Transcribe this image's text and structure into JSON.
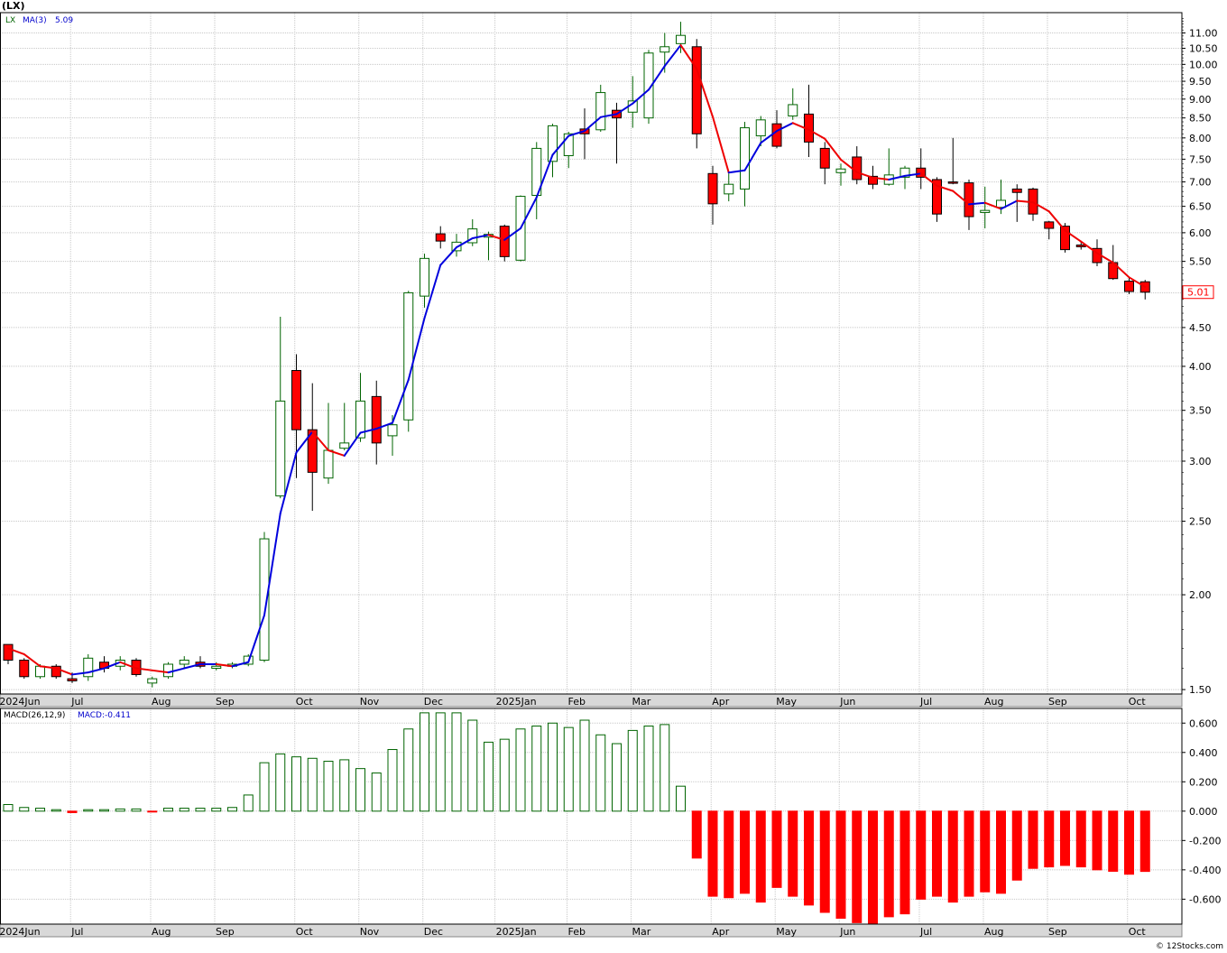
{
  "symbol_title": "(LX)",
  "watermark": "© 12Stocks.com",
  "colors": {
    "background": "#ffffff",
    "grid": "#c8c8c8",
    "axis_bar": "#d8d8d8",
    "up_candle_fill": "#ffffff",
    "up_candle_stroke": "#006400",
    "down_candle": "#ff0000",
    "ma_up": "#0000dd",
    "ma_down": "#ee0000",
    "macd_pos_stroke": "#006400",
    "macd_neg": "#ff0000",
    "last_price_label": "#ff0000"
  },
  "chart_data": [
    {
      "type": "candlestick",
      "legend": {
        "ticker": "LX",
        "ma_label": "MA(3)",
        "ma_value": "5.09"
      },
      "y_scale": "log",
      "ylim": [
        1.48,
        11.7
      ],
      "y_ticks": [
        "1.50",
        "2.00",
        "2.50",
        "3.00",
        "3.50",
        "4.00",
        "4.50",
        "5.00",
        "5.50",
        "6.00",
        "6.50",
        "7.00",
        "7.50",
        "8.00",
        "8.50",
        "9.00",
        "9.50",
        "10.00",
        "10.50",
        "11.00"
      ],
      "last_price_label": "5.01",
      "x_month_labels": [
        {
          "label": "2024Jun",
          "week": -0.6
        },
        {
          "label": "Jul",
          "week": 3.9
        },
        {
          "label": "Aug",
          "week": 8.9
        },
        {
          "label": "Sep",
          "week": 12.9
        },
        {
          "label": "Oct",
          "week": 17.9
        },
        {
          "label": "Nov",
          "week": 21.9
        },
        {
          "label": "Dec",
          "week": 25.9
        },
        {
          "label": "2025Jan",
          "week": 30.4
        },
        {
          "label": "Feb",
          "week": 34.9
        },
        {
          "label": "Mar",
          "week": 38.9
        },
        {
          "label": "Apr",
          "week": 43.9
        },
        {
          "label": "May",
          "week": 47.9
        },
        {
          "label": "Jun",
          "week": 51.9
        },
        {
          "label": "Jul",
          "week": 56.9
        },
        {
          "label": "Aug",
          "week": 60.9
        },
        {
          "label": "Sep",
          "week": 64.9
        },
        {
          "label": "Oct",
          "week": 69.9
        }
      ],
      "candles": [
        [
          1.72,
          1.72,
          1.62,
          1.64
        ],
        [
          1.64,
          1.65,
          1.55,
          1.56
        ],
        [
          1.56,
          1.62,
          1.55,
          1.61
        ],
        [
          1.61,
          1.62,
          1.55,
          1.56
        ],
        [
          1.55,
          1.58,
          1.53,
          1.54
        ],
        [
          1.56,
          1.67,
          1.54,
          1.65
        ],
        [
          1.63,
          1.66,
          1.58,
          1.6
        ],
        [
          1.61,
          1.66,
          1.59,
          1.64
        ],
        [
          1.64,
          1.65,
          1.56,
          1.57
        ],
        [
          1.53,
          1.56,
          1.51,
          1.55
        ],
        [
          1.56,
          1.63,
          1.55,
          1.62
        ],
        [
          1.62,
          1.66,
          1.6,
          1.64
        ],
        [
          1.63,
          1.66,
          1.6,
          1.61
        ],
        [
          1.6,
          1.63,
          1.59,
          1.61
        ],
        [
          1.61,
          1.63,
          1.6,
          1.62
        ],
        [
          1.62,
          1.67,
          1.61,
          1.66
        ],
        [
          1.64,
          2.42,
          1.63,
          2.37
        ],
        [
          2.7,
          4.65,
          2.68,
          3.6
        ],
        [
          3.95,
          4.15,
          2.85,
          3.3
        ],
        [
          3.3,
          3.8,
          2.58,
          2.9
        ],
        [
          2.85,
          3.58,
          2.8,
          3.1
        ],
        [
          3.12,
          3.58,
          3.1,
          3.17
        ],
        [
          3.22,
          3.92,
          3.18,
          3.6
        ],
        [
          3.65,
          3.83,
          2.97,
          3.17
        ],
        [
          3.24,
          3.45,
          3.05,
          3.35
        ],
        [
          3.4,
          5.03,
          3.28,
          5.0
        ],
        [
          4.95,
          5.63,
          4.78,
          5.55
        ],
        [
          5.98,
          6.12,
          5.72,
          5.85
        ],
        [
          5.68,
          5.98,
          5.58,
          5.83
        ],
        [
          5.82,
          6.25,
          5.76,
          6.07
        ],
        [
          5.92,
          6.02,
          5.52,
          5.97
        ],
        [
          6.12,
          6.15,
          5.5,
          5.58
        ],
        [
          5.52,
          6.72,
          5.5,
          6.7
        ],
        [
          6.72,
          7.9,
          6.25,
          7.75
        ],
        [
          7.45,
          8.35,
          7.1,
          8.3
        ],
        [
          7.58,
          8.15,
          7.3,
          8.1
        ],
        [
          8.22,
          8.75,
          7.5,
          8.1
        ],
        [
          8.2,
          9.4,
          8.15,
          9.18
        ],
        [
          8.7,
          8.9,
          7.4,
          8.5
        ],
        [
          8.65,
          9.65,
          8.25,
          8.95
        ],
        [
          8.5,
          10.45,
          8.35,
          10.35
        ],
        [
          10.38,
          11.0,
          9.75,
          10.55
        ],
        [
          10.65,
          11.38,
          10.35,
          10.92
        ],
        [
          10.55,
          10.8,
          7.75,
          8.1
        ],
        [
          7.18,
          7.35,
          6.15,
          6.55
        ],
        [
          6.75,
          7.18,
          6.6,
          6.95
        ],
        [
          6.85,
          8.4,
          6.5,
          8.25
        ],
        [
          8.05,
          8.55,
          7.8,
          8.45
        ],
        [
          8.35,
          8.7,
          7.75,
          7.8
        ],
        [
          8.55,
          9.3,
          8.45,
          8.85
        ],
        [
          8.6,
          9.4,
          7.55,
          7.9
        ],
        [
          7.75,
          7.9,
          6.95,
          7.3
        ],
        [
          7.2,
          7.4,
          6.92,
          7.28
        ],
        [
          7.55,
          7.8,
          6.95,
          7.05
        ],
        [
          7.12,
          7.35,
          6.85,
          6.95
        ],
        [
          6.95,
          7.75,
          6.92,
          7.15
        ],
        [
          7.1,
          7.35,
          6.85,
          7.3
        ],
        [
          7.3,
          7.75,
          6.85,
          7.1
        ],
        [
          7.05,
          7.1,
          6.2,
          6.35
        ],
        [
          7.0,
          8.0,
          6.95,
          6.98
        ],
        [
          6.98,
          7.05,
          6.05,
          6.3
        ],
        [
          6.38,
          6.9,
          6.08,
          6.42
        ],
        [
          6.48,
          7.05,
          6.35,
          6.62
        ],
        [
          6.85,
          6.95,
          6.2,
          6.78
        ],
        [
          6.85,
          6.88,
          6.22,
          6.35
        ],
        [
          6.2,
          6.22,
          5.88,
          6.08
        ],
        [
          6.12,
          6.18,
          5.65,
          5.7
        ],
        [
          5.78,
          5.85,
          5.7,
          5.75
        ],
        [
          5.72,
          5.88,
          5.42,
          5.48
        ],
        [
          5.48,
          5.78,
          5.2,
          5.22
        ],
        [
          5.18,
          5.25,
          4.98,
          5.02
        ],
        [
          5.17,
          5.2,
          4.9,
          5.01
        ]
      ],
      "ma3": [
        1.7,
        1.67,
        1.61,
        1.6,
        1.57,
        1.58,
        1.6,
        1.63,
        1.6,
        1.59,
        1.58,
        1.6,
        1.62,
        1.62,
        1.61,
        1.63,
        1.88,
        2.56,
        3.08,
        3.28,
        3.1,
        3.05,
        3.27,
        3.31,
        3.37,
        3.84,
        4.63,
        5.44,
        5.74,
        5.9,
        5.96,
        5.87,
        6.08,
        6.68,
        7.6,
        8.05,
        8.17,
        8.52,
        8.6,
        8.88,
        9.26,
        9.95,
        10.6,
        9.86,
        8.53,
        7.2,
        7.25,
        7.88,
        8.17,
        8.37,
        8.2,
        7.98,
        7.49,
        7.21,
        7.09,
        7.05,
        7.13,
        7.18,
        6.92,
        6.81,
        6.54,
        6.57,
        6.45,
        6.61,
        6.58,
        6.4,
        6.04,
        5.84,
        5.64,
        5.48,
        5.24,
        5.09
      ]
    },
    {
      "type": "bar",
      "legend": {
        "label": "MACD(26,12,9)",
        "value_label": "MACD:-0.411"
      },
      "ylim": [
        -0.77,
        0.7
      ],
      "y_ticks": [
        "0.600",
        "0.400",
        "0.200",
        "0.000",
        "-0.200",
        "-0.400",
        "-0.600"
      ],
      "values": [
        0.045,
        0.025,
        0.02,
        0.01,
        -0.01,
        0.01,
        0.01,
        0.015,
        0.015,
        -0.005,
        0.02,
        0.02,
        0.02,
        0.02,
        0.025,
        0.11,
        0.33,
        0.39,
        0.37,
        0.36,
        0.34,
        0.35,
        0.29,
        0.26,
        0.42,
        0.56,
        0.67,
        0.67,
        0.67,
        0.62,
        0.47,
        0.49,
        0.56,
        0.58,
        0.6,
        0.57,
        0.62,
        0.52,
        0.46,
        0.55,
        0.58,
        0.59,
        0.17,
        -0.32,
        -0.58,
        -0.59,
        -0.56,
        -0.62,
        -0.52,
        -0.58,
        -0.64,
        -0.69,
        -0.73,
        -0.76,
        -0.77,
        -0.72,
        -0.7,
        -0.6,
        -0.58,
        -0.62,
        -0.58,
        -0.55,
        -0.56,
        -0.47,
        -0.39,
        -0.38,
        -0.37,
        -0.38,
        -0.4,
        -0.41,
        -0.43,
        -0.411
      ]
    }
  ]
}
